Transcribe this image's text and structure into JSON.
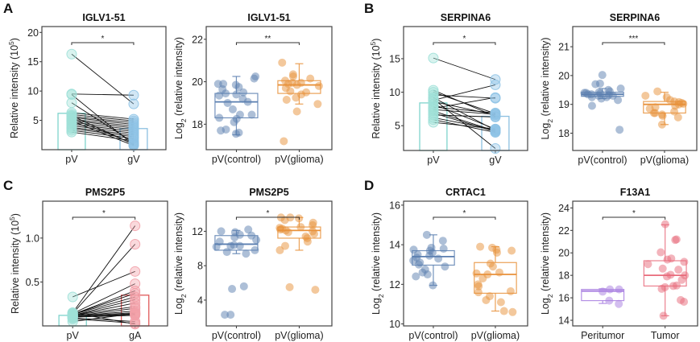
{
  "chart_data": [
    {
      "panel": "A",
      "type": "paired-bar-dot",
      "title": "IGLV1-51",
      "ylabel": "Relative intensity (10^5)",
      "ylim": [
        0,
        21
      ],
      "yticks": [
        5,
        10,
        15,
        20
      ],
      "categories": [
        "pV",
        "gV"
      ],
      "bar_means": [
        6.2,
        3.6
      ],
      "colors": [
        "#7fd3cc",
        "#8cc0e0"
      ],
      "dot_colors": [
        "#9fe0d8",
        "#8ec3e6"
      ],
      "pairs": [
        [
          16.3,
          7.8
        ],
        [
          9.5,
          9.3
        ],
        [
          9.4,
          0.8
        ],
        [
          8.0,
          1.2
        ],
        [
          6.3,
          5.2
        ],
        [
          6.0,
          4.9
        ],
        [
          5.7,
          4.6
        ],
        [
          5.5,
          4.3
        ],
        [
          5.2,
          4.0
        ],
        [
          5.0,
          3.7
        ],
        [
          4.7,
          3.4
        ],
        [
          4.4,
          3.1
        ],
        [
          4.1,
          2.8
        ],
        [
          3.8,
          2.5
        ],
        [
          3.6,
          2.2
        ],
        [
          3.3,
          1.9
        ],
        [
          3.0,
          1.5
        ],
        [
          5.8,
          0.9
        ],
        [
          5.3,
          1.0
        ],
        [
          4.9,
          0.7
        ]
      ],
      "significance": "*"
    },
    {
      "panel": "A",
      "type": "box-jitter",
      "title": "IGLV1-51",
      "ylabel": "Log2 (relative intensity)",
      "ylim": [
        16.8,
        22.6
      ],
      "yticks": [
        18,
        20,
        22
      ],
      "categories": [
        "pV(control)",
        "pV(glioma)"
      ],
      "colors": [
        "#5b7fb0",
        "#e8913a"
      ],
      "boxes": [
        {
          "q1": 18.3,
          "median": 19.05,
          "q3": 19.45,
          "whisker_low": 17.5,
          "whisker_high": 20.25
        },
        {
          "q1": 19.45,
          "median": 19.85,
          "q3": 20.05,
          "whisker_low": 18.95,
          "whisker_high": 20.85
        }
      ],
      "points": [
        [
          17.55,
          17.6,
          17.7,
          17.75,
          18.1,
          18.25,
          18.3,
          18.45,
          18.45,
          18.7,
          19.0,
          19.05,
          19.2,
          19.35,
          19.4,
          19.45,
          19.5,
          19.65,
          19.75,
          19.85,
          19.9,
          19.9,
          20.15,
          20.25
        ],
        [
          17.2,
          18.6,
          18.95,
          19.15,
          19.25,
          19.4,
          19.5,
          19.55,
          19.7,
          19.8,
          19.85,
          19.9,
          19.95,
          19.95,
          20.05,
          20.15,
          20.25,
          20.35,
          20.9
        ]
      ],
      "significance": "**"
    },
    {
      "panel": "B",
      "type": "paired-bar-dot",
      "title": "SERPINA6",
      "ylabel": "Relative intensity (10^5)",
      "ylim": [
        1.3,
        19.8
      ],
      "yticks": [
        5,
        10,
        15
      ],
      "categories": [
        "pV",
        "gV"
      ],
      "bar_means": [
        8.4,
        6.4
      ],
      "colors": [
        "#7fd3cc",
        "#8cc0e0"
      ],
      "dot_colors": [
        "#9fe0d8",
        "#8ec3e6"
      ],
      "pairs": [
        [
          15.1,
          11.9
        ],
        [
          10.3,
          6.4
        ],
        [
          10.0,
          6.8
        ],
        [
          9.6,
          9.1
        ],
        [
          9.2,
          4.3
        ],
        [
          9.0,
          1.6
        ],
        [
          8.8,
          11.1
        ],
        [
          8.6,
          6.6
        ],
        [
          8.2,
          4.5
        ],
        [
          7.8,
          6.9
        ],
        [
          7.4,
          6.7
        ],
        [
          7.2,
          4.2
        ],
        [
          6.6,
          6.3
        ],
        [
          6.2,
          4.4
        ],
        [
          5.9,
          4.0
        ],
        [
          5.5,
          4.5
        ],
        [
          7.6,
          9.2
        ],
        [
          6.9,
          4.1
        ]
      ],
      "significance": "*"
    },
    {
      "panel": "B",
      "type": "box-jitter",
      "title": "SERPINA6",
      "ylabel": "Log2 (relative intensity)",
      "ylim": [
        17.4,
        21.7
      ],
      "yticks": [
        18,
        19,
        20,
        21
      ],
      "categories": [
        "pV(control)",
        "pV(glioma)"
      ],
      "colors": [
        "#5b7fb0",
        "#e8913a"
      ],
      "boxes": [
        {
          "q1": 19.28,
          "median": 19.35,
          "q3": 19.42,
          "whisker_low": 19.2,
          "whisker_high": 19.55
        },
        {
          "q1": 18.7,
          "median": 19.0,
          "q3": 19.1,
          "whisker_low": 18.3,
          "whisker_high": 19.42
        }
      ],
      "points": [
        [
          18.12,
          18.95,
          19.15,
          19.2,
          19.25,
          19.25,
          19.3,
          19.3,
          19.32,
          19.35,
          19.35,
          19.38,
          19.4,
          19.4,
          19.42,
          19.45,
          19.5,
          19.55,
          19.7,
          19.72,
          20.02
        ],
        [
          18.3,
          18.55,
          18.6,
          18.65,
          18.7,
          18.7,
          18.75,
          18.85,
          18.9,
          18.95,
          19.0,
          19.02,
          19.05,
          19.08,
          19.1,
          19.15,
          19.25,
          19.3,
          19.45
        ]
      ],
      "significance": "***"
    },
    {
      "panel": "C",
      "type": "paired-bar-dot",
      "title": "PMS2P5",
      "ylabel": "Relative intensity (10^5)",
      "ylim": [
        0.0,
        1.42
      ],
      "yticks": [
        0.5,
        1.0
      ],
      "yticklabels": [
        "0.5",
        "1.0"
      ],
      "categories": [
        "pV",
        "gA"
      ],
      "bar_means": [
        0.12,
        0.35
      ],
      "colors": [
        "#7fd3cc",
        "#e05a5a"
      ],
      "dot_colors": [
        "#9fe0d8",
        "#f2a0a8"
      ],
      "pairs": [
        [
          0.33,
          0.62
        ],
        [
          0.15,
          1.14
        ],
        [
          0.14,
          0.93
        ],
        [
          0.14,
          0.48
        ],
        [
          0.13,
          0.4
        ],
        [
          0.13,
          0.37
        ],
        [
          0.13,
          0.33
        ],
        [
          0.12,
          0.3
        ],
        [
          0.12,
          0.26
        ],
        [
          0.12,
          0.22
        ],
        [
          0.11,
          0.2
        ],
        [
          0.11,
          0.17
        ],
        [
          0.11,
          0.15
        ],
        [
          0.1,
          0.14
        ],
        [
          0.1,
          0.13
        ],
        [
          0.1,
          0.12
        ],
        [
          0.09,
          0.05
        ],
        [
          0.08,
          0.03
        ],
        [
          0.15,
          0.02
        ],
        [
          0.05,
          0.14
        ]
      ],
      "significance": "*"
    },
    {
      "panel": "C",
      "type": "box-jitter",
      "title": "PMS2P5",
      "ylabel": "Log2 (relative intensity)",
      "ylim": [
        1.0,
        15.5
      ],
      "yticks": [
        4,
        8,
        12
      ],
      "categories": [
        "pV(control)",
        "pV(glioma)"
      ],
      "colors": [
        "#5b7fb0",
        "#e8913a"
      ],
      "boxes": [
        {
          "q1": 9.8,
          "median": 10.5,
          "q3": 11.5,
          "whisker_low": 9.4,
          "whisker_high": 12.1
        },
        {
          "q1": 11.2,
          "median": 12.1,
          "q3": 12.5,
          "whisker_low": 9.8,
          "whisker_high": 13.6
        }
      ],
      "points": [
        [
          2.3,
          2.3,
          5.3,
          5.6,
          9.4,
          9.6,
          9.8,
          10.2,
          10.3,
          10.3,
          10.4,
          10.8,
          11.0,
          11.3,
          11.5,
          11.6,
          11.9,
          12.0,
          12.2
        ],
        [
          5.2,
          5.5,
          9.8,
          10.3,
          10.8,
          11.2,
          11.4,
          11.7,
          11.9,
          12.0,
          12.1,
          12.2,
          12.3,
          12.4,
          12.5,
          12.7,
          13.0,
          13.3,
          13.5,
          13.6,
          13.6
        ]
      ],
      "significance": "*"
    },
    {
      "panel": "D",
      "type": "box-jitter",
      "title": "CRTAC1",
      "ylabel": "Log2 (relative intensity)",
      "ylim": [
        9.9,
        16.2
      ],
      "yticks": [
        10,
        12,
        14,
        16
      ],
      "categories": [
        "pV(control)",
        "pV(glioma)"
      ],
      "colors": [
        "#5b7fb0",
        "#e8913a"
      ],
      "boxes": [
        {
          "q1": 12.97,
          "median": 13.4,
          "q3": 13.7,
          "whisker_low": 11.95,
          "whisker_high": 14.5
        },
        {
          "q1": 11.55,
          "median": 12.5,
          "q3": 13.1,
          "whisker_low": 10.65,
          "whisker_high": 13.9
        }
      ],
      "points": [
        [
          11.95,
          12.4,
          12.5,
          12.6,
          12.75,
          12.9,
          13.0,
          13.1,
          13.2,
          13.3,
          13.35,
          13.45,
          13.5,
          13.6,
          13.7,
          13.75,
          13.8,
          13.85,
          14.2,
          14.5
        ],
        [
          10.6,
          10.65,
          11.1,
          11.2,
          11.4,
          11.6,
          11.65,
          11.9,
          12.0,
          12.3,
          12.5,
          12.55,
          12.6,
          12.9,
          13.05,
          13.6,
          13.7,
          13.75,
          13.85,
          13.9
        ]
      ],
      "significance": "*"
    },
    {
      "panel": "D",
      "type": "box-jitter",
      "title": "F13A1",
      "ylabel": "Log2 (relative intensity)",
      "ylim": [
        13.5,
        24.6
      ],
      "yticks": [
        14,
        16,
        18,
        20,
        22,
        24
      ],
      "categories": [
        "Peritumor",
        "Tumor"
      ],
      "colors": [
        "#a77de0",
        "#e86a7a"
      ],
      "boxes": [
        {
          "q1": 15.75,
          "median": 16.6,
          "q3": 16.75,
          "whisker_low": 15.5,
          "whisker_high": 16.8
        },
        {
          "q1": 17.05,
          "median": 18.0,
          "q3": 19.3,
          "whisker_low": 14.4,
          "whisker_high": 22.5
        }
      ],
      "points": [
        [
          15.45,
          15.75,
          16.55,
          16.75,
          16.75
        ],
        [
          14.4,
          15.65,
          15.8,
          16.8,
          16.95,
          17.05,
          17.1,
          17.6,
          17.9,
          18.0,
          18.05,
          18.5,
          18.6,
          19.0,
          19.2,
          19.4,
          19.5,
          20.05,
          21.15,
          21.2,
          22.55
        ]
      ],
      "significance": "*"
    }
  ],
  "panel_labels": [
    "A",
    "B",
    "C",
    "D"
  ]
}
